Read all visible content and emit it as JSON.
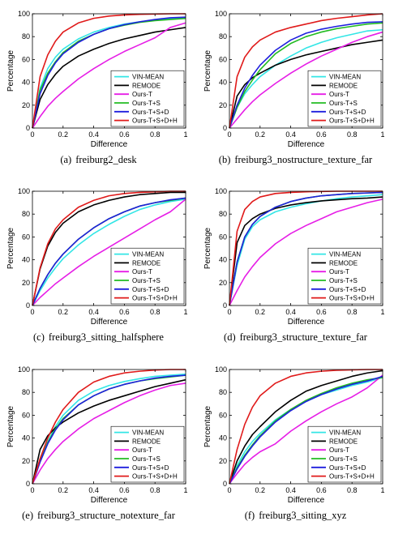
{
  "series_style": [
    {
      "name": "VIN-MEAN",
      "color": "#33e6e6"
    },
    {
      "name": "REMODE",
      "color": "#000000"
    },
    {
      "name": "Ours-T",
      "color": "#e61ee6"
    },
    {
      "name": "Ours-T+S",
      "color": "#22bb22"
    },
    {
      "name": "Ours-T+S+D",
      "color": "#1f1fdd"
    },
    {
      "name": "Ours-T+S+D+H",
      "color": "#e01a1a"
    }
  ],
  "chart_data": [
    {
      "type": "line",
      "label": "(a)",
      "caption": "freiburg2_desk",
      "xlabel": "Difference",
      "ylabel": "Percentage",
      "xlim": [
        0,
        1
      ],
      "ylim": [
        0,
        100
      ],
      "xticks": [
        "0",
        "0.2",
        "0.4",
        "0.6",
        "0.8",
        "1"
      ],
      "yticks": [
        "0",
        "20",
        "40",
        "60",
        "80",
        "100"
      ],
      "legend": "bottom-right",
      "grid": false,
      "x": [
        0,
        0.05,
        0.1,
        0.15,
        0.2,
        0.3,
        0.4,
        0.5,
        0.6,
        0.7,
        0.8,
        0.9,
        1
      ],
      "series": [
        {
          "name": "VIN-MEAN",
          "values": [
            0,
            35,
            52,
            62,
            69,
            78,
            84,
            88,
            91,
            93,
            94.5,
            95.5,
            96
          ]
        },
        {
          "name": "REMODE",
          "values": [
            0,
            25,
            38,
            47,
            54,
            63,
            69,
            74,
            78,
            81,
            84,
            86,
            88
          ]
        },
        {
          "name": "Ours-T",
          "values": [
            0,
            10,
            19,
            26,
            32,
            43,
            52,
            60,
            67,
            73,
            79,
            88,
            92
          ]
        },
        {
          "name": "Ours-T+S",
          "values": [
            0,
            33,
            48,
            58,
            66,
            76,
            82,
            87,
            90,
            92.5,
            94,
            95,
            96
          ]
        },
        {
          "name": "Ours-T+S+D",
          "values": [
            0,
            30,
            46,
            57,
            65,
            75,
            82,
            87,
            90.5,
            93,
            95,
            96.5,
            97
          ]
        },
        {
          "name": "Ours-T+S+D+H",
          "values": [
            0,
            45,
            64,
            76,
            84,
            92,
            96,
            98,
            99,
            99.5,
            99.8,
            100,
            100
          ]
        }
      ]
    },
    {
      "type": "line",
      "label": "(b)",
      "caption": "freiburg3_nostructure_texture_far",
      "xlabel": "Difference",
      "ylabel": "Percentage",
      "xlim": [
        0,
        1
      ],
      "ylim": [
        0,
        100
      ],
      "xticks": [
        "0",
        "0.2",
        "0.4",
        "0.6",
        "0.8",
        "1"
      ],
      "yticks": [
        "0",
        "20",
        "40",
        "60",
        "80",
        "100"
      ],
      "legend": "bottom-right",
      "grid": false,
      "x": [
        0,
        0.05,
        0.1,
        0.15,
        0.2,
        0.3,
        0.4,
        0.5,
        0.6,
        0.7,
        0.8,
        0.9,
        1
      ],
      "series": [
        {
          "name": "VIN-MEAN",
          "values": [
            0,
            18,
            30,
            38,
            45,
            55,
            63,
            70,
            75,
            79,
            82,
            85,
            86
          ]
        },
        {
          "name": "REMODE",
          "values": [
            0,
            28,
            38,
            44,
            48,
            55,
            60,
            64,
            67,
            70,
            73,
            75,
            77
          ]
        },
        {
          "name": "Ours-T",
          "values": [
            0,
            8,
            16,
            23,
            29,
            39,
            48,
            56,
            63,
            69,
            75,
            80,
            84
          ]
        },
        {
          "name": "Ours-T+S",
          "values": [
            0,
            18,
            32,
            42,
            51,
            65,
            74,
            80,
            84,
            87,
            89,
            91,
            92
          ]
        },
        {
          "name": "Ours-T+S+D",
          "values": [
            0,
            20,
            35,
            46,
            55,
            68,
            77,
            83,
            86.5,
            89,
            91,
            92.5,
            93
          ]
        },
        {
          "name": "Ours-T+S+D+H",
          "values": [
            0,
            45,
            62,
            71,
            77,
            84,
            88,
            91,
            94,
            96,
            97.5,
            99,
            100
          ]
        }
      ]
    },
    {
      "type": "line",
      "label": "(c)",
      "caption": "freiburg3_sitting_halfsphere",
      "xlabel": "Difference",
      "ylabel": "Percentage",
      "xlim": [
        0,
        1
      ],
      "ylim": [
        0,
        100
      ],
      "xticks": [
        "0",
        "0.2",
        "0.4",
        "0.6",
        "0.8",
        "1"
      ],
      "yticks": [
        "0",
        "20",
        "40",
        "60",
        "80",
        "100"
      ],
      "legend": "bottom-right",
      "grid": false,
      "x": [
        0,
        0.05,
        0.1,
        0.15,
        0.2,
        0.3,
        0.4,
        0.5,
        0.6,
        0.7,
        0.8,
        0.9,
        1
      ],
      "series": [
        {
          "name": "VIN-MEAN",
          "values": [
            0,
            13,
            24,
            33,
            41,
            53,
            63,
            71,
            78,
            84,
            88,
            91,
            93
          ]
        },
        {
          "name": "REMODE",
          "values": [
            0,
            32,
            52,
            64,
            72,
            82,
            88,
            92,
            95,
            97,
            98,
            99,
            99
          ]
        },
        {
          "name": "Ours-T",
          "values": [
            0,
            7,
            13,
            19,
            24,
            34,
            43,
            51,
            59,
            67,
            75,
            82,
            93
          ]
        },
        {
          "name": "Ours-T+S",
          "values": [
            0,
            15,
            27,
            37,
            45,
            58,
            68,
            76,
            82,
            87,
            90,
            92,
            94
          ]
        },
        {
          "name": "Ours-T+S+D",
          "values": [
            0,
            15,
            27,
            37,
            45,
            58,
            68,
            76,
            82,
            87,
            90,
            92.5,
            94
          ]
        },
        {
          "name": "Ours-T+S+D+H",
          "values": [
            0,
            33,
            54,
            67,
            75,
            86,
            92,
            96,
            98,
            99,
            99.5,
            100,
            100
          ]
        }
      ]
    },
    {
      "type": "line",
      "label": "(d)",
      "caption": "freiburg3_structure_texture_far",
      "xlabel": "Difference",
      "ylabel": "Percentage",
      "xlim": [
        0,
        1
      ],
      "ylim": [
        0,
        100
      ],
      "xticks": [
        "0",
        "0.2",
        "0.4",
        "0.6",
        "0.8",
        "1"
      ],
      "yticks": [
        "0",
        "20",
        "40",
        "60",
        "80",
        "100"
      ],
      "legend": "bottom-right",
      "grid": false,
      "x": [
        0,
        0.05,
        0.1,
        0.15,
        0.2,
        0.3,
        0.4,
        0.5,
        0.6,
        0.7,
        0.8,
        0.9,
        1
      ],
      "series": [
        {
          "name": "VIN-MEAN",
          "values": [
            0,
            35,
            58,
            69,
            75,
            82,
            86,
            89,
            91.5,
            93.5,
            95,
            96,
            97
          ]
        },
        {
          "name": "REMODE",
          "values": [
            0,
            55,
            70,
            76,
            80,
            85,
            88,
            90,
            91.5,
            92.5,
            93.5,
            94,
            95
          ]
        },
        {
          "name": "Ours-T",
          "values": [
            0,
            13,
            25,
            34,
            42,
            54,
            63,
            70,
            76,
            82,
            86,
            90,
            93
          ]
        },
        {
          "name": "Ours-T+S",
          "values": [
            0,
            38,
            60,
            71,
            78,
            86,
            91,
            94,
            96,
            97,
            98,
            98.5,
            99
          ]
        },
        {
          "name": "Ours-T+S+D",
          "values": [
            0,
            38,
            60,
            71,
            78,
            86,
            91,
            94,
            96,
            97,
            98,
            98.5,
            99
          ]
        },
        {
          "name": "Ours-T+S+D+H",
          "values": [
            0,
            65,
            84,
            91,
            95,
            98,
            99,
            99.5,
            99.8,
            100,
            100,
            100,
            100
          ]
        }
      ]
    },
    {
      "type": "line",
      "label": "(e)",
      "caption": "freiburg3_structure_notexture_far",
      "xlabel": "Difference",
      "ylabel": "Percentage",
      "xlim": [
        0,
        1
      ],
      "ylim": [
        0,
        100
      ],
      "xticks": [
        "0",
        "0.2",
        "0.4",
        "0.6",
        "0.8",
        "1"
      ],
      "yticks": [
        "0",
        "20",
        "40",
        "60",
        "80",
        "100"
      ],
      "legend": "bottom-right",
      "grid": false,
      "x": [
        0,
        0.05,
        0.1,
        0.15,
        0.2,
        0.3,
        0.4,
        0.5,
        0.6,
        0.7,
        0.8,
        0.9,
        1
      ],
      "series": [
        {
          "name": "VIN-MEAN",
          "values": [
            0,
            20,
            37,
            50,
            60,
            73,
            81,
            86,
            89.5,
            92,
            94,
            95,
            96
          ]
        },
        {
          "name": "REMODE",
          "values": [
            0,
            30,
            42,
            49,
            54,
            62,
            68,
            73,
            77,
            81,
            85,
            88,
            91
          ]
        },
        {
          "name": "Ours-T",
          "values": [
            0,
            12,
            22,
            30,
            37,
            48,
            57,
            64,
            71,
            77,
            82,
            86,
            88
          ]
        },
        {
          "name": "Ours-T+S",
          "values": [
            0,
            20,
            36,
            48,
            57,
            69,
            77,
            83,
            87,
            90,
            92,
            93.5,
            95
          ]
        },
        {
          "name": "Ours-T+S+D",
          "values": [
            0,
            19,
            35,
            47,
            56,
            69,
            77,
            83,
            87,
            90,
            92.5,
            94,
            95
          ]
        },
        {
          "name": "Ours-T+S+D+H",
          "values": [
            0,
            22,
            40,
            54,
            65,
            80,
            89,
            94,
            97,
            98.5,
            99.5,
            100,
            100
          ]
        }
      ]
    },
    {
      "type": "line",
      "label": "(f)",
      "caption": "freiburg3_sitting_xyz",
      "xlabel": "Difference",
      "ylabel": "Percentage",
      "xlim": [
        0,
        1
      ],
      "ylim": [
        0,
        100
      ],
      "xticks": [
        "0",
        "0.2",
        "0.4",
        "0.6",
        "0.8",
        "1"
      ],
      "yticks": [
        "0",
        "20",
        "40",
        "60",
        "80",
        "100"
      ],
      "legend": "bottom-right",
      "grid": false,
      "x": [
        0,
        0.05,
        0.1,
        0.15,
        0.2,
        0.3,
        0.4,
        0.5,
        0.6,
        0.7,
        0.8,
        0.9,
        1
      ],
      "series": [
        {
          "name": "VIN-MEAN",
          "values": [
            0,
            16,
            28,
            37,
            44,
            56,
            65,
            72,
            78,
            82,
            86,
            89,
            93
          ]
        },
        {
          "name": "REMODE",
          "values": [
            0,
            20,
            33,
            43,
            50,
            63,
            73,
            81,
            86,
            90,
            94,
            97,
            99
          ]
        },
        {
          "name": "Ours-T",
          "values": [
            0,
            9,
            17,
            23,
            28,
            35,
            46,
            55,
            63,
            70,
            76,
            84,
            95
          ]
        },
        {
          "name": "Ours-T+S",
          "values": [
            0,
            14,
            25,
            34,
            42,
            55,
            65,
            73,
            79,
            84,
            88,
            91,
            93
          ]
        },
        {
          "name": "Ours-T+S+D",
          "values": [
            0,
            13,
            24,
            33,
            41,
            54,
            64,
            72,
            78,
            83,
            87,
            90,
            94
          ]
        },
        {
          "name": "Ours-T+S+D+H",
          "values": [
            0,
            30,
            52,
            67,
            77,
            88,
            94,
            97,
            98.5,
            99.3,
            99.7,
            100,
            100
          ]
        }
      ]
    }
  ]
}
